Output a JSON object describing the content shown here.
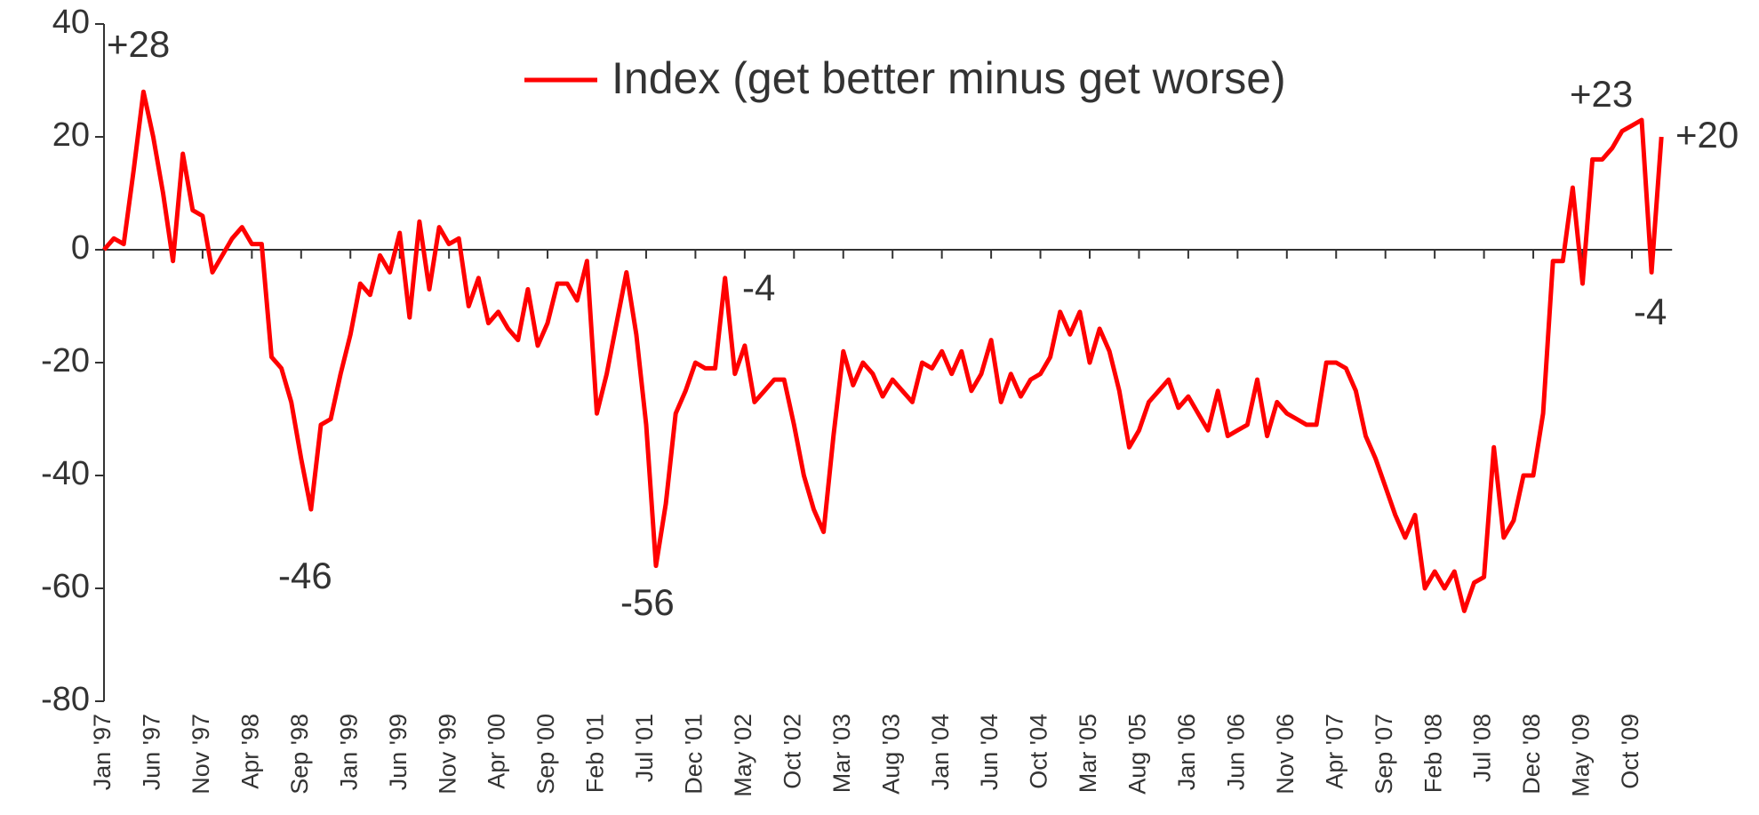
{
  "chart_data": {
    "type": "line",
    "categories": [
      "Jan '97",
      null,
      null,
      null,
      null,
      "Jun '97",
      null,
      null,
      null,
      null,
      "Nov '97",
      null,
      null,
      null,
      null,
      "Apr '98",
      null,
      null,
      null,
      null,
      "Sep '98",
      null,
      null,
      null,
      null,
      "Jan '99",
      null,
      null,
      null,
      null,
      "Jun '99",
      null,
      null,
      null,
      null,
      "Nov '99",
      null,
      null,
      null,
      null,
      "Apr '00",
      null,
      null,
      null,
      null,
      "Sep '00",
      null,
      null,
      null,
      null,
      "Feb '01",
      null,
      null,
      null,
      null,
      "Jul '01",
      null,
      null,
      null,
      null,
      "Dec '01",
      null,
      null,
      null,
      null,
      "May '02",
      null,
      null,
      null,
      null,
      "Oct '02",
      null,
      null,
      null,
      null,
      "Mar '03",
      null,
      null,
      null,
      null,
      "Aug '03",
      null,
      null,
      null,
      null,
      "Jan '04",
      null,
      null,
      null,
      null,
      "Jun '04",
      null,
      null,
      null,
      null,
      "Oct '04",
      null,
      null,
      null,
      null,
      "Mar '05",
      null,
      null,
      null,
      null,
      "Aug '05",
      null,
      null,
      null,
      null,
      "Jan '06",
      null,
      null,
      null,
      null,
      "Jun '06",
      null,
      null,
      null,
      null,
      "Nov '06",
      null,
      null,
      null,
      null,
      "Apr '07",
      null,
      null,
      null,
      null,
      "Sep '07",
      null,
      null,
      null,
      null,
      "Feb '08",
      null,
      null,
      null,
      null,
      "Jul '08",
      null,
      null,
      null,
      null,
      "Dec '08",
      null,
      null,
      null,
      null,
      "May '09",
      null,
      null,
      null,
      null,
      "Oct '09",
      null,
      null,
      null
    ],
    "series": [
      {
        "name": "Index (get better minus get worse)",
        "color": "#ff0000",
        "values": [
          0,
          2,
          1,
          14,
          28,
          20,
          10,
          -2,
          17,
          7,
          6,
          -4,
          -1,
          2,
          4,
          1,
          1,
          -19,
          -21,
          -27,
          -37,
          -46,
          -31,
          -30,
          -22,
          -15,
          -6,
          -8,
          -1,
          -4,
          3,
          -12,
          5,
          -7,
          4,
          1,
          2,
          -10,
          -5,
          -13,
          -11,
          -14,
          -16,
          -7,
          -17,
          -13,
          -6,
          -6,
          -9,
          -2,
          -29,
          -22,
          -13,
          -4,
          -15,
          -31,
          -56,
          -45,
          -29,
          -25,
          -20,
          -21,
          -21,
          -5,
          -22,
          -17,
          -27,
          -25,
          -23,
          -23,
          -31,
          -40,
          -46,
          -50,
          -33,
          -18,
          -24,
          -20,
          -22,
          -26,
          -23,
          -25,
          -27,
          -20,
          -21,
          -18,
          -22,
          -18,
          -25,
          -22,
          -16,
          -27,
          -22,
          -26,
          -23,
          -22,
          -19,
          -11,
          -15,
          -11,
          -20,
          -14,
          -18,
          -25,
          -35,
          -32,
          -27,
          -25,
          -23,
          -28,
          -26,
          -29,
          -32,
          -25,
          -33,
          -32,
          -31,
          -23,
          -33,
          -27,
          -29,
          -30,
          -31,
          -31,
          -20,
          -20,
          -21,
          -25,
          -33,
          -37,
          -42,
          -47,
          -51,
          -47,
          -60,
          -57,
          -60,
          -57,
          -64,
          -59,
          -58,
          -35,
          -51,
          -48,
          -40,
          -40,
          -29,
          -2,
          -2,
          11,
          -6,
          16,
          16,
          18,
          21,
          22,
          23,
          -4,
          20
        ]
      }
    ],
    "annotations": [
      "+28",
      "-46",
      "-56",
      "-4",
      "+23",
      "+20",
      "-4"
    ],
    "ylim": [
      -80,
      40
    ],
    "yticks": [
      -80,
      -60,
      -40,
      -20,
      0,
      20,
      40
    ],
    "legend": "top"
  }
}
